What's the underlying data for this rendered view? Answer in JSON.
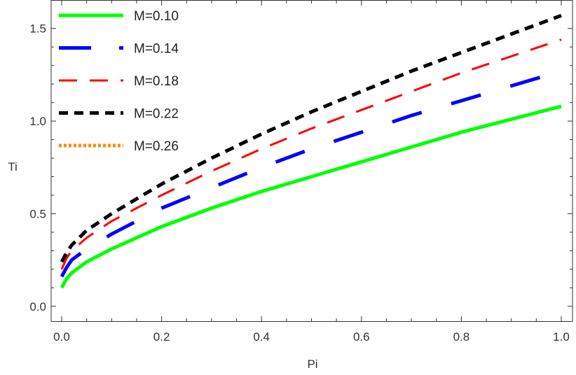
{
  "chart_data": {
    "type": "line",
    "xlabel": "Pi",
    "ylabel": "Ti",
    "xlim": [
      0.0,
      1.0
    ],
    "ylim": [
      -0.08,
      1.65
    ],
    "xticks": [
      0.0,
      0.2,
      0.4,
      0.6,
      0.8,
      1.0
    ],
    "xtick_labels": [
      "0.0",
      "0.2",
      "0.4",
      "0.6",
      "0.8",
      "1.0"
    ],
    "yticks": [
      0.0,
      0.5,
      1.0,
      1.5
    ],
    "ytick_labels": [
      "0.0",
      "0.5",
      "1.0",
      "1.5"
    ],
    "grid": false,
    "legend_position": "top-left",
    "series": [
      {
        "name": "M=0.10",
        "color": "#00ff00",
        "style": "solid",
        "x": [
          0.0,
          0.01,
          0.02,
          0.05,
          0.1,
          0.15,
          0.2,
          0.3,
          0.4,
          0.5,
          0.6,
          0.7,
          0.8,
          0.9,
          1.0
        ],
        "y": [
          0.1,
          0.15,
          0.18,
          0.24,
          0.31,
          0.37,
          0.43,
          0.53,
          0.62,
          0.7,
          0.78,
          0.86,
          0.94,
          1.01,
          1.08
        ]
      },
      {
        "name": "M=0.14",
        "color": "#0000ff",
        "style": "long-dash",
        "x": [
          0.0,
          0.01,
          0.02,
          0.05,
          0.1,
          0.15,
          0.2,
          0.3,
          0.4,
          0.5,
          0.6,
          0.7,
          0.8,
          0.9,
          1.0
        ],
        "y": [
          0.16,
          0.21,
          0.25,
          0.31,
          0.39,
          0.46,
          0.53,
          0.64,
          0.75,
          0.85,
          0.94,
          1.03,
          1.11,
          1.19,
          1.27
        ]
      },
      {
        "name": "M=0.18",
        "color": "#ff0000",
        "style": "dashed",
        "x": [
          0.0,
          0.01,
          0.02,
          0.05,
          0.1,
          0.15,
          0.2,
          0.3,
          0.4,
          0.5,
          0.6,
          0.7,
          0.8,
          0.9,
          1.0
        ],
        "y": [
          0.2,
          0.26,
          0.3,
          0.37,
          0.46,
          0.53,
          0.6,
          0.73,
          0.85,
          0.96,
          1.06,
          1.16,
          1.26,
          1.35,
          1.44
        ]
      },
      {
        "name": "M=0.22",
        "color": "#000000",
        "style": "short-dash",
        "x": [
          0.0,
          0.01,
          0.02,
          0.05,
          0.1,
          0.15,
          0.2,
          0.3,
          0.4,
          0.5,
          0.6,
          0.7,
          0.8,
          0.9,
          1.0
        ],
        "y": [
          0.24,
          0.29,
          0.33,
          0.41,
          0.5,
          0.58,
          0.66,
          0.8,
          0.93,
          1.05,
          1.16,
          1.27,
          1.37,
          1.47,
          1.57
        ]
      },
      {
        "name": "M=0.26",
        "color": "#ff8c00",
        "style": "dotted",
        "x": [],
        "y": []
      }
    ]
  }
}
